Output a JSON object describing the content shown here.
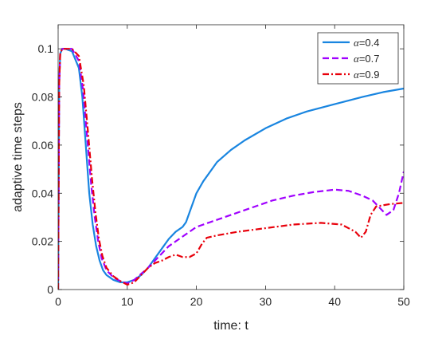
{
  "chart_data": {
    "type": "line",
    "title": "",
    "xlabel": "time: t",
    "ylabel": "adaptive time steps",
    "xlim": [
      0,
      50
    ],
    "ylim": [
      0,
      0.11
    ],
    "xticks": [
      0,
      10,
      20,
      30,
      40,
      50
    ],
    "yticks": [
      0,
      0.02,
      0.04,
      0.06,
      0.08,
      0.1
    ],
    "xtick_labels": [
      "0",
      "10",
      "20",
      "30",
      "40",
      "50"
    ],
    "ytick_labels": [
      "0",
      "0.02",
      "0.04",
      "0.06",
      "0.08",
      "0.1"
    ],
    "grid": false,
    "legend_position": "top-right",
    "series": [
      {
        "name": "α=0.4",
        "legend_symbol": "α",
        "legend_value": "=0.4",
        "color": "#1985e0",
        "style": "solid",
        "x": [
          0,
          0.15,
          0.3,
          0.6,
          1,
          2,
          3,
          3.5,
          4,
          4.5,
          5,
          5.5,
          6,
          6.5,
          7,
          8,
          9,
          10,
          11,
          12,
          13,
          14,
          15,
          16,
          17,
          18,
          18.5,
          19,
          20,
          21,
          22,
          23,
          25,
          27,
          30,
          33,
          36,
          40,
          44,
          47,
          50
        ],
        "y": [
          0,
          0.085,
          0.098,
          0.1,
          0.1,
          0.099,
          0.092,
          0.08,
          0.06,
          0.04,
          0.027,
          0.018,
          0.012,
          0.008,
          0.006,
          0.004,
          0.003,
          0.003,
          0.004,
          0.006,
          0.009,
          0.013,
          0.017,
          0.021,
          0.024,
          0.026,
          0.028,
          0.032,
          0.04,
          0.045,
          0.049,
          0.053,
          0.058,
          0.062,
          0.067,
          0.071,
          0.074,
          0.077,
          0.08,
          0.082,
          0.0835
        ]
      },
      {
        "name": "α=0.7",
        "legend_symbol": "α",
        "legend_value": "=0.7",
        "color": "#a000ff",
        "style": "dashed",
        "x": [
          0,
          0.15,
          0.3,
          0.6,
          1,
          2,
          3,
          3.6,
          4.2,
          4.8,
          5.3,
          5.8,
          6.3,
          7,
          8,
          9,
          10,
          11,
          12,
          13,
          14,
          15,
          16,
          17,
          18,
          19,
          20,
          22,
          25,
          28,
          31,
          34,
          37,
          40,
          42,
          44,
          45.5,
          46.5,
          47.5,
          48.5,
          49.3,
          50
        ],
        "y": [
          0,
          0.085,
          0.098,
          0.1,
          0.1,
          0.1,
          0.095,
          0.083,
          0.063,
          0.043,
          0.03,
          0.02,
          0.013,
          0.008,
          0.005,
          0.0035,
          0.0025,
          0.004,
          0.0065,
          0.009,
          0.012,
          0.015,
          0.018,
          0.02,
          0.022,
          0.024,
          0.026,
          0.028,
          0.031,
          0.034,
          0.037,
          0.039,
          0.0405,
          0.0415,
          0.041,
          0.039,
          0.037,
          0.034,
          0.031,
          0.033,
          0.04,
          0.049
        ]
      },
      {
        "name": "α=0.9",
        "legend_symbol": "α",
        "legend_value": "=0.9",
        "color": "#e8000b",
        "style": "dashdot",
        "x": [
          0,
          0.15,
          0.3,
          0.6,
          1,
          2,
          3,
          3.7,
          4.3,
          4.9,
          5.4,
          5.9,
          6.4,
          7,
          8,
          9,
          10,
          11,
          12,
          13,
          14,
          15,
          16,
          17,
          18,
          19,
          20,
          20.8,
          21.5,
          23,
          26,
          30,
          34,
          38,
          41,
          43,
          43.8,
          44.5,
          45.2,
          46,
          48,
          50
        ],
        "y": [
          0,
          0.085,
          0.098,
          0.1,
          0.1,
          0.1,
          0.097,
          0.085,
          0.066,
          0.046,
          0.032,
          0.021,
          0.014,
          0.009,
          0.0055,
          0.0035,
          0.002,
          0.003,
          0.006,
          0.009,
          0.011,
          0.012,
          0.0135,
          0.0145,
          0.0135,
          0.0135,
          0.015,
          0.019,
          0.0215,
          0.0225,
          0.024,
          0.0255,
          0.027,
          0.0277,
          0.027,
          0.024,
          0.0215,
          0.024,
          0.031,
          0.0345,
          0.0355,
          0.036
        ]
      }
    ]
  }
}
